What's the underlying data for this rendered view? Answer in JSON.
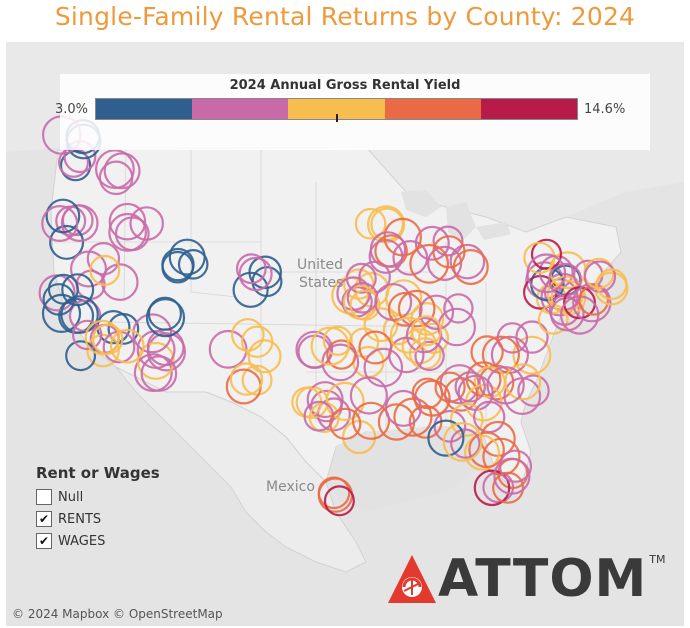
{
  "title": "Single-Family Rental Returns by County: 2024",
  "legend": {
    "title": "2024 Annual Gross Rental Yield",
    "min_label": "3.0%",
    "max_label": "14.6%",
    "colors": [
      "#2e5f8f",
      "#c96aa8",
      "#f8bd4f",
      "#ea6a45",
      "#b81b4a"
    ]
  },
  "map_labels": {
    "us_line1": "United",
    "us_line2": "States",
    "mexico": "Mexico"
  },
  "filter": {
    "title": "Rent or Wages",
    "options": [
      {
        "label": "Null",
        "checked": false
      },
      {
        "label": "RENTS",
        "checked": true
      },
      {
        "label": "WAGES",
        "checked": true
      }
    ],
    "check_mark": "✔"
  },
  "logo": {
    "text": "ATTOM",
    "tm": "TM",
    "accent": "#e23a2d"
  },
  "attribution": "© 2024 Mapbox © OpenStreetMap"
}
